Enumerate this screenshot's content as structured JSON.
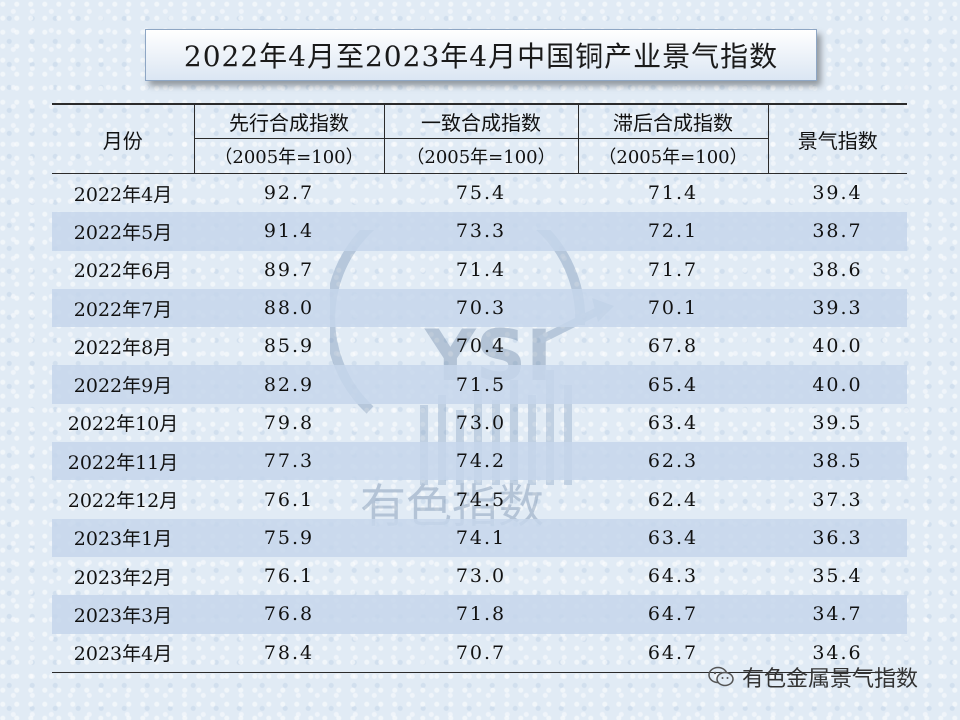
{
  "title": "2022年4月至2023年4月中国铜产业景气指数",
  "table": {
    "header_month": "月份",
    "columns": [
      {
        "name": "先行合成指数",
        "base": "（2005年=100）"
      },
      {
        "name": "一致合成指数",
        "base": "（2005年=100）"
      },
      {
        "name": "滞后合成指数",
        "base": "（2005年=100）"
      }
    ],
    "header_index": "景气指数",
    "rows": [
      {
        "month": "2022年4月",
        "leading": "92.7",
        "coincident": "75.4",
        "lagging": "71.4",
        "index": "39.4"
      },
      {
        "month": "2022年5月",
        "leading": "91.4",
        "coincident": "73.3",
        "lagging": "72.1",
        "index": "38.7"
      },
      {
        "month": "2022年6月",
        "leading": "89.7",
        "coincident": "71.4",
        "lagging": "71.7",
        "index": "38.6"
      },
      {
        "month": "2022年7月",
        "leading": "88.0",
        "coincident": "70.3",
        "lagging": "70.1",
        "index": "39.3"
      },
      {
        "month": "2022年8月",
        "leading": "85.9",
        "coincident": "70.4",
        "lagging": "67.8",
        "index": "40.0"
      },
      {
        "month": "2022年9月",
        "leading": "82.9",
        "coincident": "71.5",
        "lagging": "65.4",
        "index": "40.0"
      },
      {
        "month": "2022年10月",
        "leading": "79.8",
        "coincident": "73.0",
        "lagging": "63.4",
        "index": "39.5"
      },
      {
        "month": "2022年11月",
        "leading": "77.3",
        "coincident": "74.2",
        "lagging": "62.3",
        "index": "38.5"
      },
      {
        "month": "2022年12月",
        "leading": "76.1",
        "coincident": "74.5",
        "lagging": "62.4",
        "index": "37.3"
      },
      {
        "month": "2023年1月",
        "leading": "75.9",
        "coincident": "74.1",
        "lagging": "63.4",
        "index": "36.3"
      },
      {
        "month": "2023年2月",
        "leading": "76.1",
        "coincident": "73.0",
        "lagging": "64.3",
        "index": "35.4"
      },
      {
        "month": "2023年3月",
        "leading": "76.8",
        "coincident": "71.8",
        "lagging": "64.7",
        "index": "34.7"
      },
      {
        "month": "2023年4月",
        "leading": "78.4",
        "coincident": "70.7",
        "lagging": "64.7",
        "index": "34.6"
      }
    ]
  },
  "watermark": {
    "letters": "YSI",
    "text": "有色指数"
  },
  "footer": {
    "icon": "wechat-icon",
    "text": "有色金属景气指数"
  }
}
